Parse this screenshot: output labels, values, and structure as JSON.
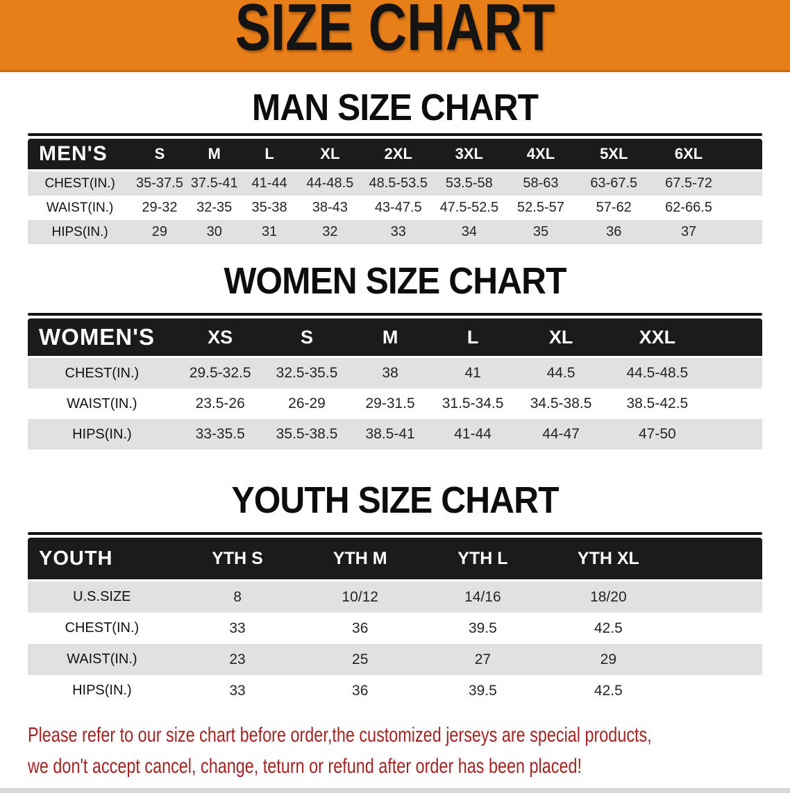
{
  "banner": {
    "title": "SIZE CHART",
    "bg_color": "#E87E17",
    "text_color": "#141414"
  },
  "men": {
    "heading": "MAN SIZE CHART",
    "label": "MEN'S",
    "columns": [
      "S",
      "M",
      "L",
      "XL",
      "2XL",
      "3XL",
      "4XL",
      "5XL",
      "6XL"
    ],
    "rows": [
      {
        "label": "CHEST(IN.)",
        "values": [
          "35-37.5",
          "37.5-41",
          "41-44",
          "44-48.5",
          "48.5-53.5",
          "53.5-58",
          "58-63",
          "63-67.5",
          "67.5-72"
        ]
      },
      {
        "label": "WAIST(IN.)",
        "values": [
          "29-32",
          "32-35",
          "35-38",
          "38-43",
          "43-47.5",
          "47.5-52.5",
          "52.5-57",
          "57-62",
          "62-66.5"
        ]
      },
      {
        "label": "HIPS(IN.)",
        "values": [
          "29",
          "30",
          "31",
          "32",
          "33",
          "34",
          "35",
          "36",
          "37"
        ]
      }
    ]
  },
  "women": {
    "heading": "WOMEN SIZE CHART",
    "label": "WOMEN'S",
    "columns": [
      "XS",
      "S",
      "M",
      "L",
      "XL",
      "XXL"
    ],
    "rows": [
      {
        "label": "CHEST(IN.)",
        "values": [
          "29.5-32.5",
          "32.5-35.5",
          "38",
          "41",
          "44.5",
          "44.5-48.5"
        ]
      },
      {
        "label": "WAIST(IN.)",
        "values": [
          "23.5-26",
          "26-29",
          "29-31.5",
          "31.5-34.5",
          "34.5-38.5",
          "38.5-42.5"
        ]
      },
      {
        "label": "HIPS(IN.)",
        "values": [
          "33-35.5",
          "35.5-38.5",
          "38.5-41",
          "41-44",
          "44-47",
          "47-50"
        ]
      }
    ]
  },
  "youth": {
    "heading": "YOUTH SIZE CHART",
    "label": "YOUTH",
    "columns": [
      "YTH S",
      "YTH M",
      "YTH L",
      "YTH XL"
    ],
    "rows": [
      {
        "label": "U.S.SIZE",
        "values": [
          "8",
          "10/12",
          "14/16",
          "18/20"
        ]
      },
      {
        "label": "CHEST(IN.)",
        "values": [
          "33",
          "36",
          "39.5",
          "42.5"
        ]
      },
      {
        "label": "WAIST(IN.)",
        "values": [
          "23",
          "25",
          "27",
          "29"
        ]
      },
      {
        "label": "HIPS(IN.)",
        "values": [
          "33",
          "36",
          "39.5",
          "42.5"
        ]
      }
    ]
  },
  "note": {
    "line1": "Please refer to our size chart before order,the customized jerseys are special products,",
    "line2": "we don't accept cancel, change, teturn or refund after order has been placed!",
    "color": "#A32222"
  }
}
